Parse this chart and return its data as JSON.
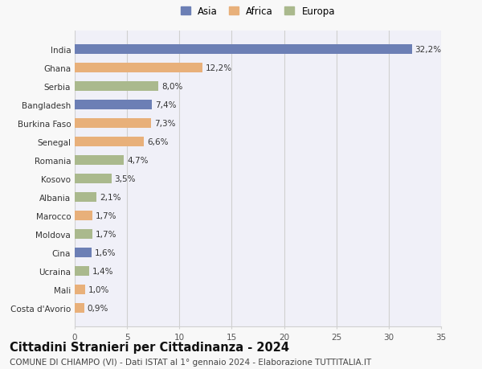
{
  "countries": [
    "India",
    "Ghana",
    "Serbia",
    "Bangladesh",
    "Burkina Faso",
    "Senegal",
    "Romania",
    "Kosovo",
    "Albania",
    "Marocco",
    "Moldova",
    "Cina",
    "Ucraina",
    "Mali",
    "Costa d'Avorio"
  ],
  "values": [
    32.2,
    12.2,
    8.0,
    7.4,
    7.3,
    6.6,
    4.7,
    3.5,
    2.1,
    1.7,
    1.7,
    1.6,
    1.4,
    1.0,
    0.9
  ],
  "labels": [
    "32,2%",
    "12,2%",
    "8,0%",
    "7,4%",
    "7,3%",
    "6,6%",
    "4,7%",
    "3,5%",
    "2,1%",
    "1,7%",
    "1,7%",
    "1,6%",
    "1,4%",
    "1,0%",
    "0,9%"
  ],
  "continent": [
    "Asia",
    "Africa",
    "Europa",
    "Asia",
    "Africa",
    "Africa",
    "Europa",
    "Europa",
    "Europa",
    "Africa",
    "Europa",
    "Asia",
    "Europa",
    "Africa",
    "Africa"
  ],
  "colors": {
    "Asia": "#6c7fb5",
    "Africa": "#e8b07a",
    "Europa": "#aab98d"
  },
  "legend_labels": [
    "Asia",
    "Africa",
    "Europa"
  ],
  "title": "Cittadini Stranieri per Cittadinanza - 2024",
  "subtitle": "COMUNE DI CHIAMPO (VI) - Dati ISTAT al 1° gennaio 2024 - Elaborazione TUTTITALIA.IT",
  "xlim": [
    0,
    35
  ],
  "xticks": [
    0,
    5,
    10,
    15,
    20,
    25,
    30,
    35
  ],
  "background_color": "#f8f8f8",
  "plot_bg_color": "#f0f0f8",
  "grid_color": "#d0d0d0",
  "title_fontsize": 10.5,
  "subtitle_fontsize": 7.5,
  "label_fontsize": 7.5,
  "tick_fontsize": 7.5,
  "bar_height": 0.55
}
